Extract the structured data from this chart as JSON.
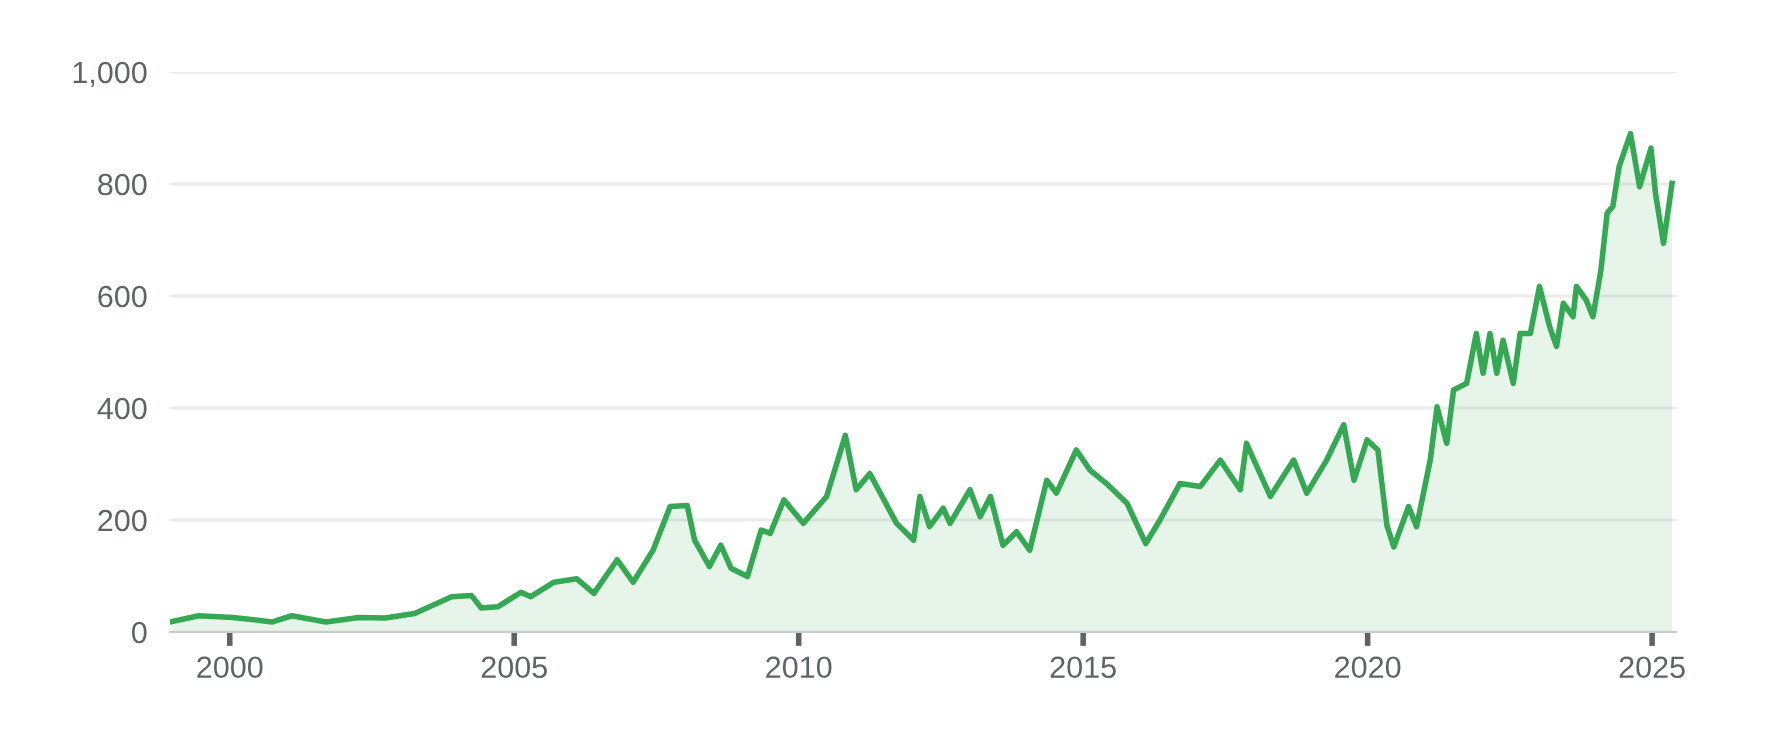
{
  "chart_data": {
    "type": "area",
    "x": [
      1998.99,
      1999.46,
      2000.06,
      2000.75,
      2001.09,
      2001.69,
      2002.27,
      2002.73,
      2003.25,
      2003.9,
      2004.25,
      2004.42,
      2004.71,
      2005.12,
      2005.29,
      2005.7,
      2006.1,
      2006.4,
      2006.81,
      2007.09,
      2007.44,
      2007.74,
      2008.04,
      2008.17,
      2008.43,
      2008.63,
      2008.81,
      2009.1,
      2009.34,
      2009.5,
      2009.74,
      2010.08,
      2010.49,
      2010.82,
      2011.01,
      2011.25,
      2011.72,
      2012.02,
      2012.13,
      2012.3,
      2012.54,
      2012.66,
      2013.01,
      2013.19,
      2013.37,
      2013.59,
      2013.83,
      2014.06,
      2014.36,
      2014.53,
      2014.88,
      2015.12,
      2015.41,
      2015.77,
      2016.1,
      2016.35,
      2016.7,
      2017.06,
      2017.41,
      2017.76,
      2017.87,
      2018.29,
      2018.7,
      2018.93,
      2019.28,
      2019.58,
      2019.76,
      2019.99,
      2020.18,
      2020.34,
      2020.46,
      2020.72,
      2020.86,
      2021.1,
      2021.22,
      2021.39,
      2021.51,
      2021.74,
      2021.91,
      2022.03,
      2022.15,
      2022.27,
      2022.38,
      2022.56,
      2022.68,
      2022.86,
      2023.02,
      2023.2,
      2023.32,
      2023.44,
      2023.61,
      2023.67,
      2023.84,
      2023.96,
      2024.1,
      2024.21,
      2024.31,
      2024.42,
      2024.62,
      2024.78,
      2024.98,
      2025.06,
      2025.2,
      2025.35
    ],
    "series": [
      {
        "color": "#34a853",
        "values": [
          19,
          29,
          26,
          18,
          29,
          18,
          26,
          25,
          33,
          63,
          65,
          43,
          45,
          71,
          63,
          89,
          95,
          69,
          129,
          89,
          146,
          224,
          226,
          164,
          117,
          155,
          114,
          99,
          182,
          176,
          236,
          194,
          242,
          351,
          254,
          283,
          194,
          164,
          242,
          188,
          221,
          194,
          254,
          206,
          242,
          155,
          179,
          146,
          271,
          248,
          325,
          289,
          265,
          230,
          158,
          200,
          265,
          260,
          307,
          254,
          337,
          242,
          307,
          248,
          307,
          370,
          271,
          343,
          325,
          190,
          152,
          224,
          188,
          307,
          402,
          337,
          432,
          444,
          533,
          462,
          533,
          462,
          521,
          444,
          533,
          533,
          617,
          545,
          510,
          587,
          563,
          617,
          593,
          563,
          646,
          748,
          760,
          831,
          890,
          795,
          864,
          783,
          694,
          801
        ]
      }
    ],
    "xlim": [
      1998.95,
      2025.42
    ],
    "xticks": [
      2000,
      2005,
      2010,
      2015,
      2020,
      2025
    ],
    "ylim": [
      0,
      1000
    ],
    "yticks": [
      0,
      200,
      400,
      600,
      800,
      {
        "value": 1000,
        "label": "1,000"
      }
    ],
    "grid": "y"
  }
}
